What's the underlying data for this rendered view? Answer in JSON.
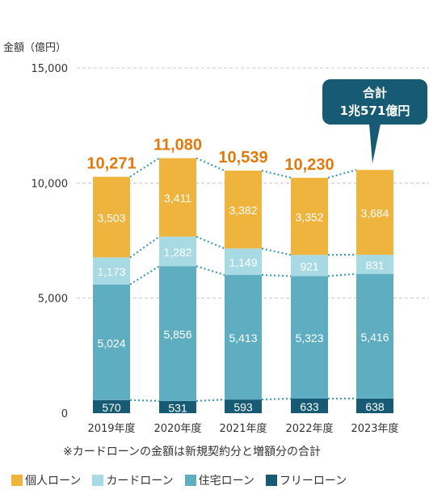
{
  "chart_data": {
    "type": "bar",
    "stacked": true,
    "ylabel": "金額（億円）",
    "ylim": [
      0,
      15000
    ],
    "yticks": [
      0,
      5000,
      10000,
      15000
    ],
    "ytick_labels": [
      "0",
      "5,000",
      "10,000",
      "15,000"
    ],
    "categories": [
      "2019年度",
      "2020年度",
      "2021年度",
      "2022年度",
      "2023年度"
    ],
    "series": [
      {
        "name": "フリーローン",
        "color": "#165b73",
        "values": [
          570,
          531,
          593,
          633,
          638
        ],
        "labels": [
          "570",
          "531",
          "593",
          "633",
          "638"
        ]
      },
      {
        "name": "住宅ローン",
        "color": "#5eadc0",
        "values": [
          5024,
          5856,
          5413,
          5323,
          5416
        ],
        "labels": [
          "5,024",
          "5,856",
          "5,413",
          "5,323",
          "5,416"
        ]
      },
      {
        "name": "カードローン",
        "color": "#a7dae2",
        "values": [
          1173,
          1282,
          1149,
          921,
          831
        ],
        "labels": [
          "1,173",
          "1,282",
          "1,149",
          "921",
          "831"
        ]
      },
      {
        "name": "個人ローン",
        "color": "#efb43e",
        "values": [
          3503,
          3411,
          3382,
          3352,
          3684
        ],
        "labels": [
          "3,503",
          "3,411",
          "3,382",
          "3,352",
          "3,684"
        ]
      }
    ],
    "totals": [
      "10,271",
      "11,080",
      "10,539",
      "10,230",
      ""
    ],
    "callout": {
      "line1": "合計",
      "line2": "1兆571億円",
      "color": "#165b73"
    },
    "grid": true,
    "legend_position": "bottom"
  },
  "note": "※カードローンの金額は新規契約分と増額分の合計",
  "legend_order": [
    "個人ローン",
    "カードローン",
    "住宅ローン",
    "フリーローン"
  ]
}
